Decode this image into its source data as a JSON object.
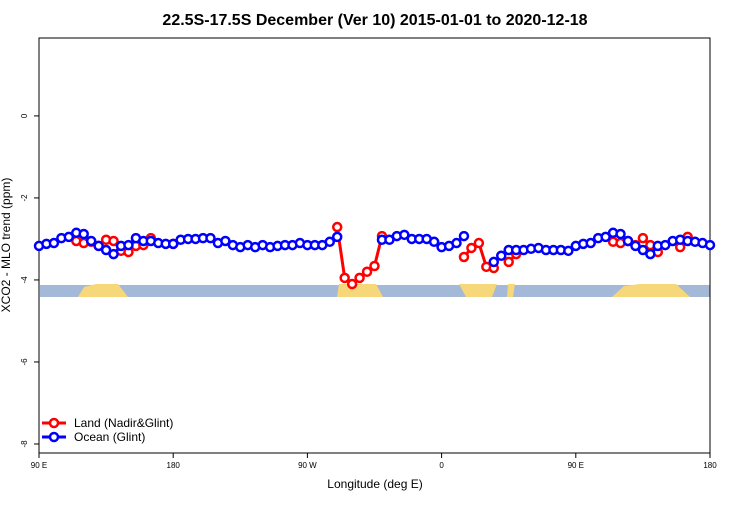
{
  "chart_data": {
    "type": "line",
    "title": "22.5S-17.5S December (Ver 10)   2015-01-01 to 2020-12-18",
    "xlabel": "Longitude (deg E)",
    "ylabel": "XCO2 - MLO trend (ppm)",
    "x": [
      90,
      95,
      100,
      105,
      110,
      115,
      120,
      125,
      130,
      135,
      140,
      145,
      150,
      155,
      160,
      165,
      170,
      175,
      180,
      185,
      190,
      195,
      200,
      205,
      210,
      215,
      220,
      225,
      230,
      235,
      240,
      245,
      250,
      255,
      260,
      265,
      270,
      275,
      280,
      285,
      290,
      295,
      300,
      305,
      310,
      315,
      320,
      325,
      330,
      335,
      340,
      345,
      350,
      355,
      360,
      365,
      370,
      375,
      380,
      385,
      390,
      395,
      400,
      405,
      410,
      415,
      420,
      425,
      430,
      435,
      440,
      445,
      450,
      455,
      460,
      465,
      470,
      475,
      480,
      485,
      490,
      495,
      500,
      505,
      510,
      515,
      520,
      525,
      530,
      535,
      540
    ],
    "series": [
      {
        "name": "Land (Nadir&Glint)",
        "color": "#ff0000",
        "values": [
          null,
          null,
          null,
          null,
          null,
          -3.05,
          -3.1,
          -3.07,
          -3.17,
          -3.02,
          -3.05,
          -3.29,
          -3.32,
          -3.17,
          -3.15,
          -2.98,
          null,
          null,
          -3.12,
          null,
          null,
          null,
          null,
          null,
          null,
          null,
          null,
          null,
          null,
          null,
          null,
          null,
          null,
          null,
          null,
          null,
          null,
          null,
          null,
          null,
          -2.71,
          -3.95,
          -4.1,
          -3.95,
          -3.8,
          -3.66,
          -2.93,
          null,
          null,
          null,
          null,
          null,
          null,
          null,
          null,
          null,
          null,
          -3.44,
          -3.22,
          -3.1,
          -3.68,
          -3.71,
          null,
          -3.56,
          -3.37,
          null,
          null,
          null,
          null,
          null,
          null,
          null,
          null,
          null,
          null,
          null,
          null,
          -3.07,
          -3.1,
          -3.05,
          -3.15,
          -2.98,
          -3.15,
          -3.32,
          null,
          null,
          -3.2,
          -2.95,
          null,
          null,
          null
        ]
      },
      {
        "name": "Ocean (Glint)",
        "color": "#0000ff",
        "values": [
          -3.17,
          -3.12,
          -3.1,
          -2.98,
          -2.95,
          -2.85,
          -2.88,
          -3.05,
          -3.17,
          -3.27,
          -3.37,
          -3.17,
          -3.15,
          -2.98,
          -3.05,
          -3.05,
          -3.1,
          -3.12,
          -3.12,
          -3.02,
          -3.0,
          -3.0,
          -2.98,
          -2.98,
          -3.1,
          -3.05,
          -3.15,
          -3.2,
          -3.15,
          -3.2,
          -3.15,
          -3.2,
          -3.17,
          -3.15,
          -3.15,
          -3.1,
          -3.15,
          -3.15,
          -3.15,
          -3.07,
          -2.95,
          null,
          null,
          null,
          null,
          null,
          -3.02,
          -3.02,
          -2.93,
          -2.9,
          -3.0,
          -3.0,
          -3.0,
          -3.07,
          -3.2,
          -3.17,
          -3.1,
          -2.93,
          null,
          null,
          null,
          -3.56,
          -3.41,
          -3.27,
          -3.27,
          -3.27,
          -3.24,
          -3.22,
          -3.27,
          -3.27,
          -3.27,
          -3.29,
          -3.17,
          -3.12,
          -3.1,
          -2.98,
          -2.95,
          -2.85,
          -2.88,
          -3.05,
          -3.17,
          -3.27,
          -3.37,
          -3.17,
          -3.15,
          -3.05,
          -3.02,
          -3.05,
          -3.07,
          -3.1,
          -3.15
        ]
      }
    ],
    "xlim": [
      90,
      540
    ],
    "xticks": [
      {
        "value": 90,
        "label": "90 E"
      },
      {
        "value": 180,
        "label": "180"
      },
      {
        "value": 270,
        "label": "90 W"
      },
      {
        "value": 360,
        "label": "0"
      },
      {
        "value": 450,
        "label": "90 E"
      },
      {
        "value": 540,
        "label": "180"
      }
    ],
    "ylim": [
      -8.22,
      1.9
    ],
    "yticks": [
      0,
      -2,
      -4,
      -6,
      -8
    ],
    "legend": "bottom-left"
  }
}
